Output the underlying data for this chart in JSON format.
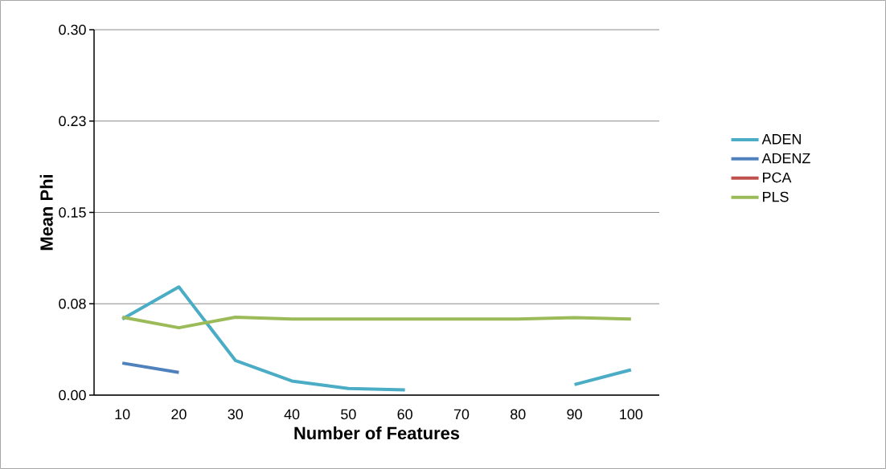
{
  "chart_data": {
    "type": "line",
    "xlabel": "Number of Features",
    "ylabel": "Mean Phi",
    "categories": [
      "10",
      "20",
      "30",
      "40",
      "50",
      "60",
      "70",
      "80",
      "90",
      "100"
    ],
    "series": [
      {
        "name": "ADEN",
        "color": "#4bacc6",
        "values": [
          0.0625,
          0.0888,
          0.0285,
          0.0116,
          0.0055,
          0.0043,
          null,
          null,
          0.0087,
          0.0208
        ]
      },
      {
        "name": "ADENZ",
        "color": "#4f81bd",
        "values": [
          0.0263,
          0.0186,
          null,
          null,
          null,
          null,
          null,
          null,
          null,
          null
        ]
      },
      {
        "name": "PCA",
        "color": "#c0504d",
        "values": [
          null,
          null,
          null,
          null,
          null,
          null,
          null,
          null,
          null,
          null
        ]
      },
      {
        "name": "PLS",
        "color": "#9bbb59",
        "values": [
          0.064,
          0.0553,
          0.064,
          0.0625,
          0.0625,
          0.0625,
          0.0625,
          0.0625,
          0.0636,
          0.0625
        ]
      }
    ],
    "ylim": [
      0,
      0.3
    ],
    "yticks": [
      {
        "value": 0,
        "label": "0.00"
      },
      {
        "value": 0.075,
        "label": "0.08"
      },
      {
        "value": 0.15,
        "label": "0.15"
      },
      {
        "value": 0.225,
        "label": "0.23"
      },
      {
        "value": 0.3,
        "label": "0.30"
      }
    ],
    "grid": "y",
    "legend": "right",
    "marker": "none",
    "line_style": "solid"
  }
}
